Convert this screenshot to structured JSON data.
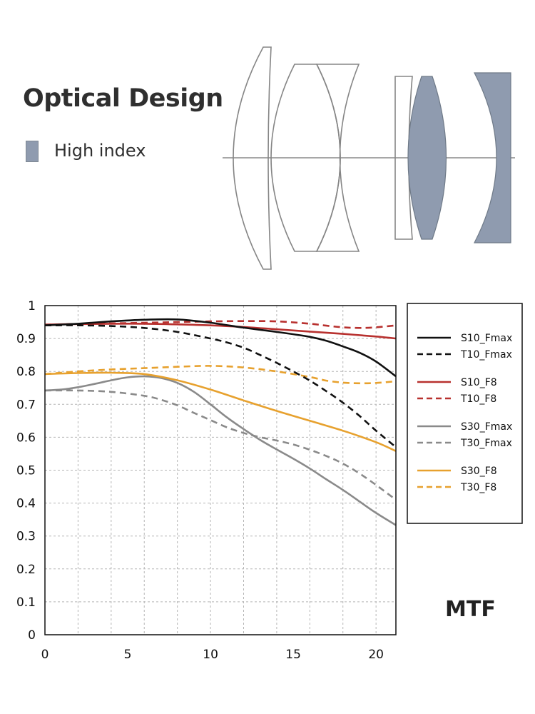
{
  "header": {
    "title": "Optical Design"
  },
  "legend_top": {
    "label": "High index",
    "color": "#8f9baf"
  },
  "colors": {
    "lens_stroke": "#858585",
    "high_index_fill": "#8f9baf",
    "axis": "#111111",
    "grid": "#b5b5b5"
  },
  "mtf_label": "MTF",
  "chart_data": {
    "type": "line",
    "title": "MTF",
    "xlabel": "",
    "ylabel": "",
    "xlim": [
      0,
      21.2
    ],
    "ylim": [
      0,
      1
    ],
    "grid": true,
    "x_ticks": [
      0,
      5,
      10,
      15,
      20
    ],
    "x_tick_labels": [
      "0",
      "5",
      "10",
      "15",
      "20"
    ],
    "y_ticks": [
      0,
      0.1,
      0.2,
      0.3,
      0.4,
      0.5,
      0.6,
      0.7,
      0.8,
      0.9,
      1
    ],
    "y_tick_labels": [
      "0",
      "0.1",
      "0.2",
      "0.3",
      "0.4",
      "0.5",
      "0.6",
      "0.7",
      "0.8",
      "0.9",
      "1"
    ],
    "legend_position": "right",
    "series": [
      {
        "name": "S10_Fmax",
        "color": "#111111",
        "dash": false,
        "x": [
          0,
          2,
          4,
          6,
          8,
          10,
          12,
          14,
          16,
          17,
          18,
          19,
          20,
          21.2
        ],
        "y": [
          0.94,
          0.945,
          0.952,
          0.957,
          0.958,
          0.948,
          0.933,
          0.92,
          0.905,
          0.893,
          0.876,
          0.857,
          0.83,
          0.785
        ]
      },
      {
        "name": "T10_Fmax",
        "color": "#111111",
        "dash": true,
        "x": [
          0,
          2,
          4,
          6,
          8,
          10,
          11,
          12,
          13,
          14,
          15,
          16,
          17,
          18,
          19,
          20,
          21.2
        ],
        "y": [
          0.94,
          0.94,
          0.938,
          0.932,
          0.92,
          0.9,
          0.888,
          0.872,
          0.85,
          0.826,
          0.8,
          0.772,
          0.74,
          0.705,
          0.665,
          0.62,
          0.57
        ]
      },
      {
        "name": "S10_F8",
        "color": "#b8312f",
        "dash": false,
        "x": [
          0,
          2,
          4,
          6,
          8,
          10,
          12,
          14,
          16,
          18,
          20,
          21.2
        ],
        "y": [
          0.942,
          0.944,
          0.945,
          0.945,
          0.943,
          0.94,
          0.935,
          0.928,
          0.921,
          0.914,
          0.906,
          0.9
        ]
      },
      {
        "name": "T10_F8",
        "color": "#b8312f",
        "dash": true,
        "x": [
          0,
          2,
          4,
          6,
          8,
          10,
          12,
          14,
          16,
          17,
          18,
          19,
          20,
          21.2
        ],
        "y": [
          0.942,
          0.944,
          0.946,
          0.948,
          0.95,
          0.952,
          0.953,
          0.952,
          0.945,
          0.939,
          0.934,
          0.932,
          0.934,
          0.94
        ]
      },
      {
        "name": "S30_Fmax",
        "color": "#8a8a8a",
        "dash": false,
        "x": [
          0,
          1,
          2,
          3,
          4,
          5,
          6,
          7,
          8,
          9,
          10,
          11,
          12,
          13,
          14,
          15,
          16,
          17,
          18,
          19,
          20,
          21.2
        ],
        "y": [
          0.742,
          0.745,
          0.752,
          0.762,
          0.773,
          0.782,
          0.785,
          0.78,
          0.765,
          0.738,
          0.7,
          0.66,
          0.625,
          0.592,
          0.563,
          0.535,
          0.505,
          0.472,
          0.44,
          0.405,
          0.37,
          0.333
        ]
      },
      {
        "name": "T30_Fmax",
        "color": "#8a8a8a",
        "dash": true,
        "x": [
          0,
          2,
          4,
          6,
          7,
          8,
          9,
          10,
          11,
          12,
          13,
          14,
          15,
          16,
          17,
          18,
          19,
          20,
          21.2
        ],
        "y": [
          0.742,
          0.742,
          0.738,
          0.726,
          0.714,
          0.697,
          0.674,
          0.652,
          0.63,
          0.613,
          0.6,
          0.59,
          0.578,
          0.562,
          0.543,
          0.52,
          0.49,
          0.455,
          0.41
        ]
      },
      {
        "name": "S30_F8",
        "color": "#e7a12e",
        "dash": false,
        "x": [
          0,
          2,
          4,
          6,
          8,
          10,
          12,
          14,
          16,
          18,
          20,
          21.2
        ],
        "y": [
          0.792,
          0.795,
          0.796,
          0.792,
          0.773,
          0.745,
          0.712,
          0.68,
          0.65,
          0.62,
          0.585,
          0.558
        ]
      },
      {
        "name": "T30_F8",
        "color": "#e7a12e",
        "dash": true,
        "x": [
          0,
          2,
          4,
          6,
          8,
          10,
          12,
          14,
          16,
          17,
          18,
          19,
          20,
          21.2
        ],
        "y": [
          0.792,
          0.8,
          0.806,
          0.81,
          0.814,
          0.817,
          0.812,
          0.8,
          0.783,
          0.772,
          0.766,
          0.764,
          0.765,
          0.77
        ]
      }
    ]
  }
}
